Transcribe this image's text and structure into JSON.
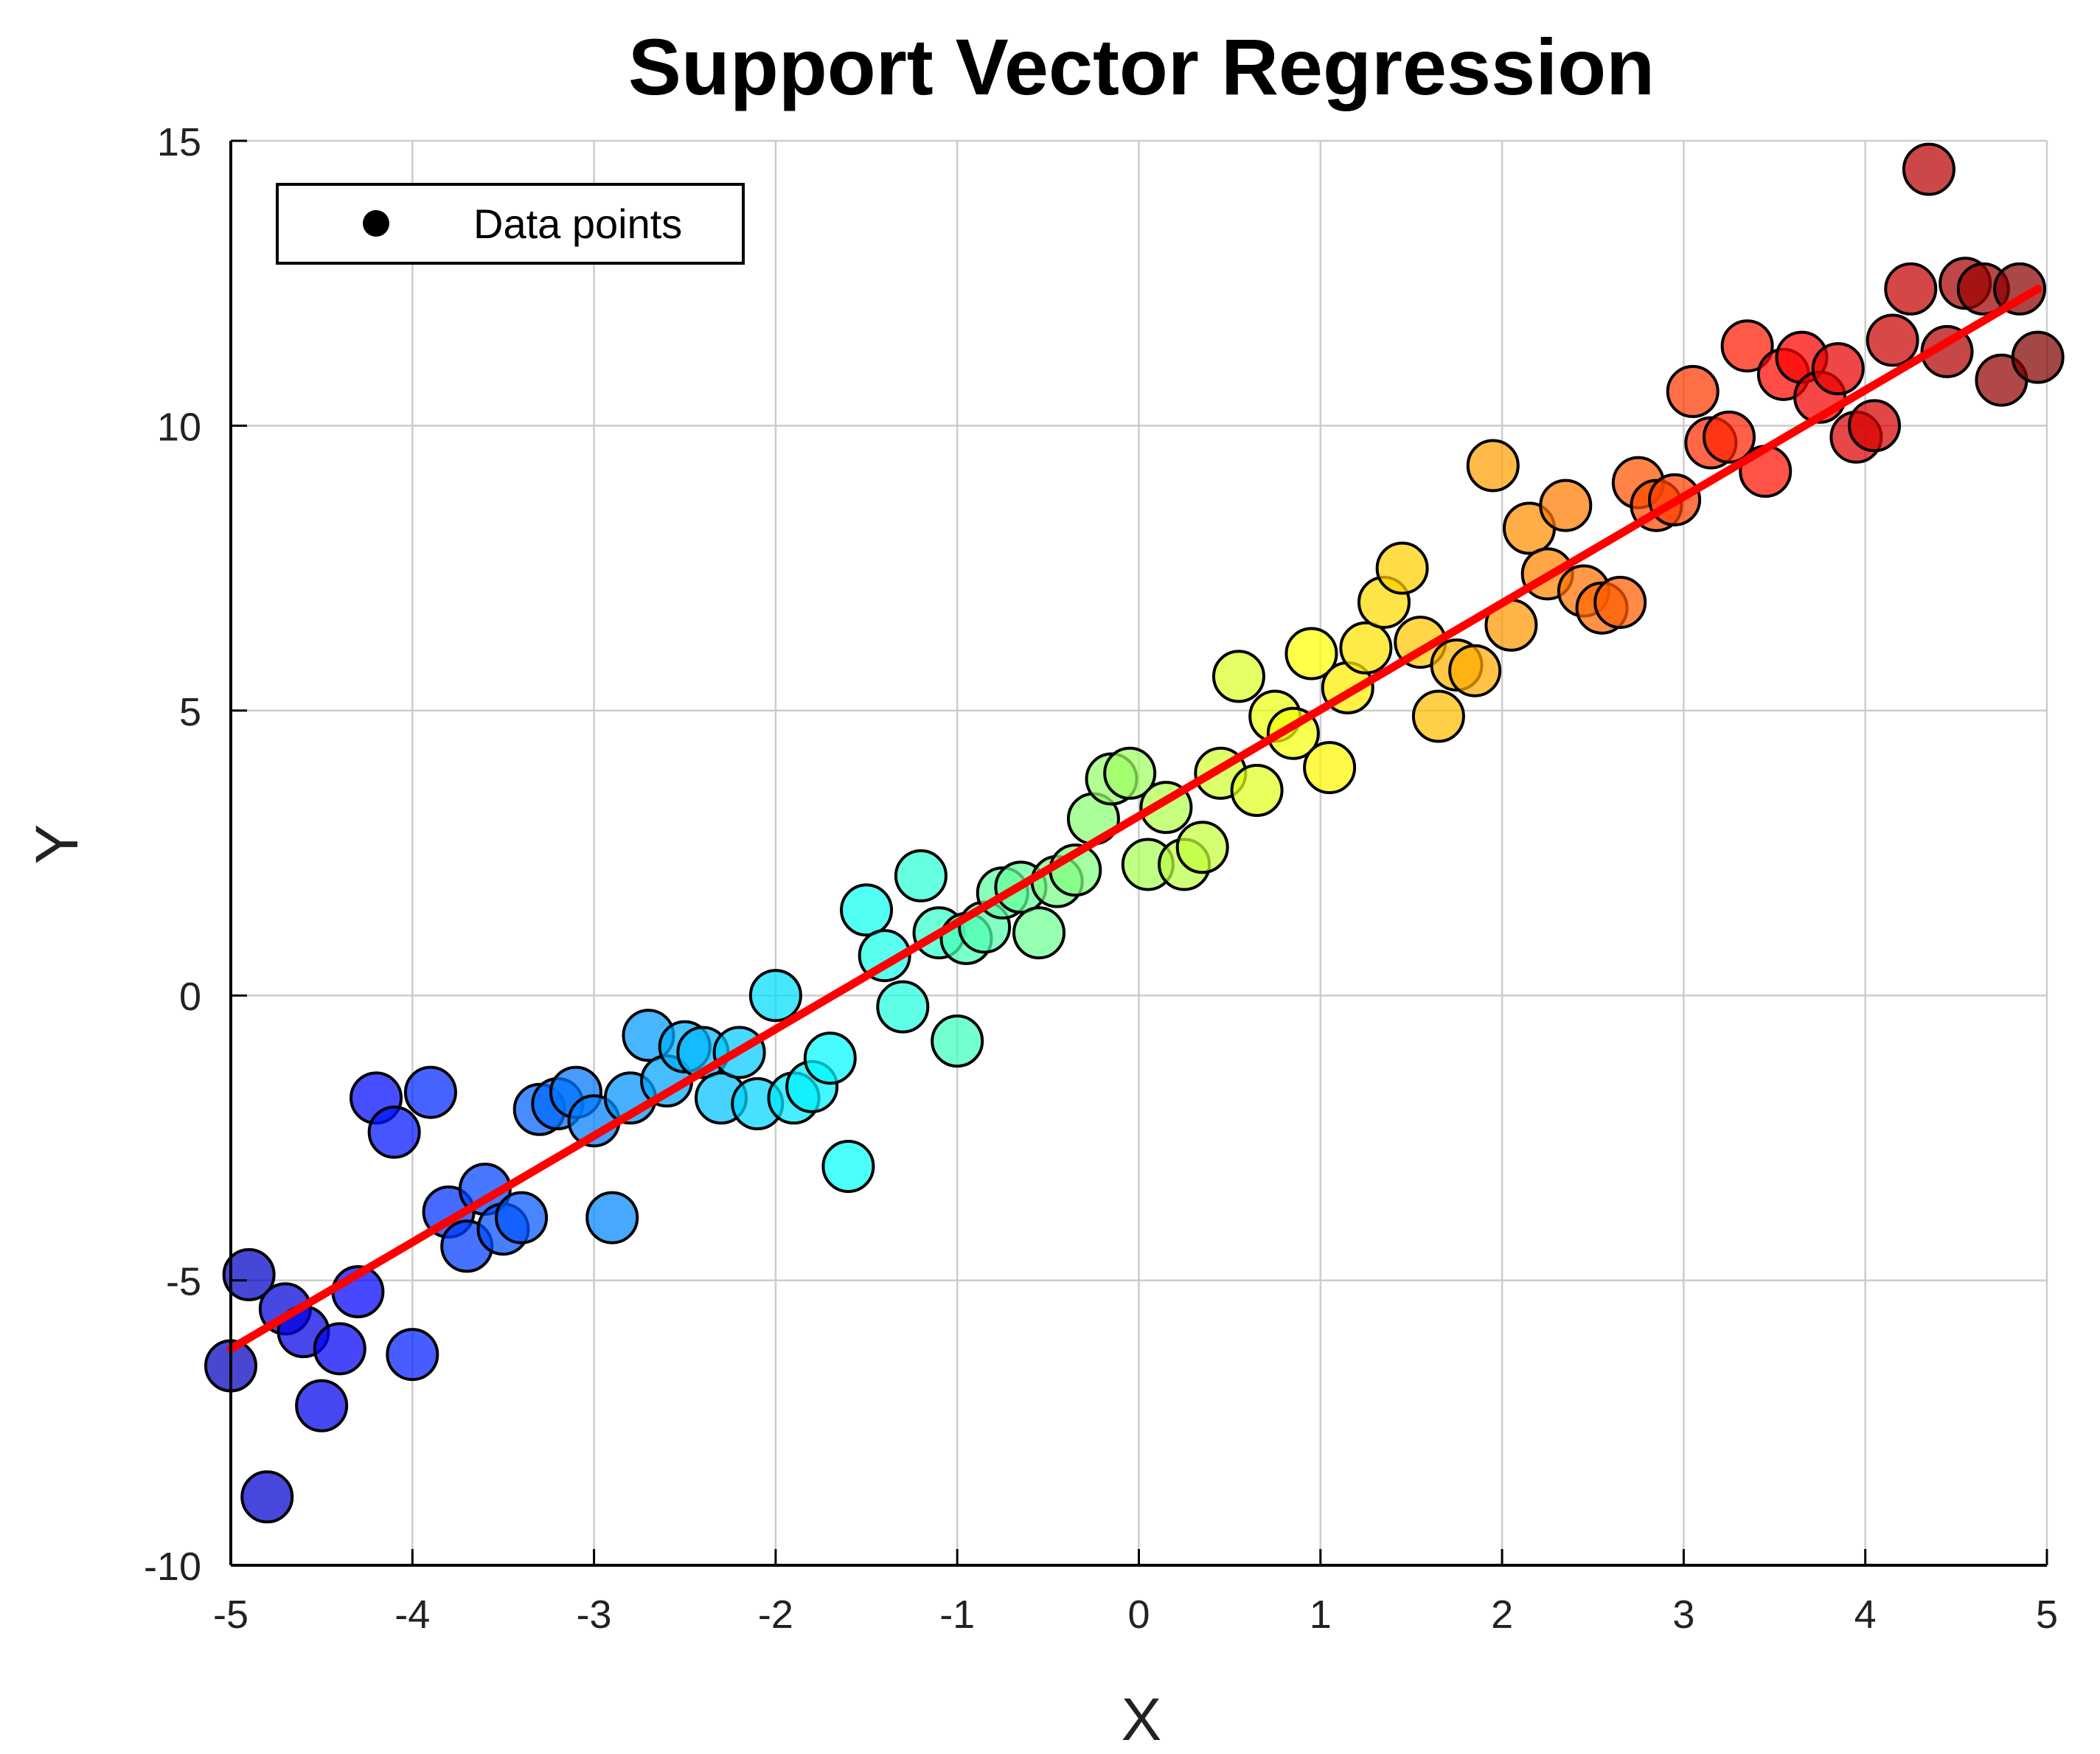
{
  "chart_data": {
    "type": "scatter",
    "title": "Support Vector Regression",
    "xlabel": "X",
    "ylabel": "Y",
    "xlim": [
      -5,
      5
    ],
    "ylim": [
      -10,
      15
    ],
    "xticks": [
      "-5",
      "-4",
      "-3",
      "-2",
      "-1",
      "0",
      "1",
      "2",
      "3",
      "4",
      "5"
    ],
    "yticks": [
      "-10",
      "-5",
      "0",
      "5",
      "10",
      "15"
    ],
    "grid": true,
    "colormap": "jet",
    "legend": {
      "position": "top-left",
      "entries": [
        "Data points"
      ]
    },
    "fit_line": {
      "color": "#ff0000",
      "x": [
        -5,
        4.95
      ],
      "y": [
        -6.2,
        12.4
      ]
    },
    "points": [
      [
        -5.0,
        -6.5
      ],
      [
        -4.9,
        -4.9
      ],
      [
        -4.8,
        -8.8
      ],
      [
        -4.7,
        -5.5
      ],
      [
        -4.6,
        -5.9
      ],
      [
        -4.5,
        -7.2
      ],
      [
        -4.4,
        -6.2
      ],
      [
        -4.3,
        -5.2
      ],
      [
        -4.2,
        -1.8
      ],
      [
        -4.1,
        -2.4
      ],
      [
        -4.0,
        -6.3
      ],
      [
        -3.9,
        -1.7
      ],
      [
        -3.8,
        -3.8
      ],
      [
        -3.7,
        -4.4
      ],
      [
        -3.6,
        -3.4
      ],
      [
        -3.5,
        -4.1
      ],
      [
        -3.4,
        -3.9
      ],
      [
        -3.3,
        -2.0
      ],
      [
        -3.2,
        -1.9
      ],
      [
        -3.1,
        -1.7
      ],
      [
        -3.0,
        -2.2
      ],
      [
        -2.9,
        -3.9
      ],
      [
        -2.8,
        -1.8
      ],
      [
        -2.7,
        -0.7
      ],
      [
        -2.6,
        -1.5
      ],
      [
        -2.5,
        -0.9
      ],
      [
        -2.4,
        -1.0
      ],
      [
        -2.3,
        -1.8
      ],
      [
        -2.2,
        -1.0
      ],
      [
        -2.1,
        -1.9
      ],
      [
        -2.0,
        0.0
      ],
      [
        -1.9,
        -1.8
      ],
      [
        -1.8,
        -1.6
      ],
      [
        -1.7,
        -1.1
      ],
      [
        -1.6,
        -3.0
      ],
      [
        -1.5,
        1.5
      ],
      [
        -1.4,
        0.7
      ],
      [
        -1.3,
        -0.2
      ],
      [
        -1.2,
        2.1
      ],
      [
        -1.1,
        1.1
      ],
      [
        -1.0,
        -0.8
      ],
      [
        -0.95,
        1.0
      ],
      [
        -0.85,
        1.2
      ],
      [
        -0.75,
        1.8
      ],
      [
        -0.65,
        1.9
      ],
      [
        -0.55,
        1.1
      ],
      [
        -0.45,
        2.0
      ],
      [
        -0.35,
        2.2
      ],
      [
        -0.25,
        3.1
      ],
      [
        -0.15,
        3.8
      ],
      [
        -0.05,
        3.9
      ],
      [
        0.05,
        2.3
      ],
      [
        0.15,
        3.3
      ],
      [
        0.25,
        2.3
      ],
      [
        0.35,
        2.6
      ],
      [
        0.45,
        3.9
      ],
      [
        0.55,
        5.6
      ],
      [
        0.65,
        3.6
      ],
      [
        0.75,
        4.9
      ],
      [
        0.85,
        4.6
      ],
      [
        0.95,
        6.0
      ],
      [
        1.05,
        4.0
      ],
      [
        1.15,
        5.4
      ],
      [
        1.25,
        6.1
      ],
      [
        1.35,
        6.9
      ],
      [
        1.45,
        7.5
      ],
      [
        1.55,
        6.2
      ],
      [
        1.65,
        4.9
      ],
      [
        1.75,
        5.8
      ],
      [
        1.85,
        5.7
      ],
      [
        1.95,
        9.3
      ],
      [
        2.05,
        6.5
      ],
      [
        2.15,
        8.2
      ],
      [
        2.25,
        7.4
      ],
      [
        2.35,
        8.6
      ],
      [
        2.45,
        7.1
      ],
      [
        2.55,
        6.8
      ],
      [
        2.65,
        6.9
      ],
      [
        2.75,
        9.0
      ],
      [
        2.85,
        8.6
      ],
      [
        2.95,
        8.7
      ],
      [
        3.05,
        10.6
      ],
      [
        3.15,
        9.7
      ],
      [
        3.25,
        9.8
      ],
      [
        3.35,
        11.4
      ],
      [
        3.45,
        9.2
      ],
      [
        3.55,
        10.9
      ],
      [
        3.65,
        11.2
      ],
      [
        3.75,
        10.5
      ],
      [
        3.85,
        11.0
      ],
      [
        3.95,
        9.8
      ],
      [
        4.05,
        10.0
      ],
      [
        4.15,
        11.5
      ],
      [
        4.25,
        12.4
      ],
      [
        4.35,
        14.5
      ],
      [
        4.45,
        11.3
      ],
      [
        4.55,
        12.5
      ],
      [
        4.65,
        12.4
      ],
      [
        4.75,
        10.8
      ],
      [
        4.85,
        12.4
      ],
      [
        4.95,
        11.2
      ]
    ]
  }
}
